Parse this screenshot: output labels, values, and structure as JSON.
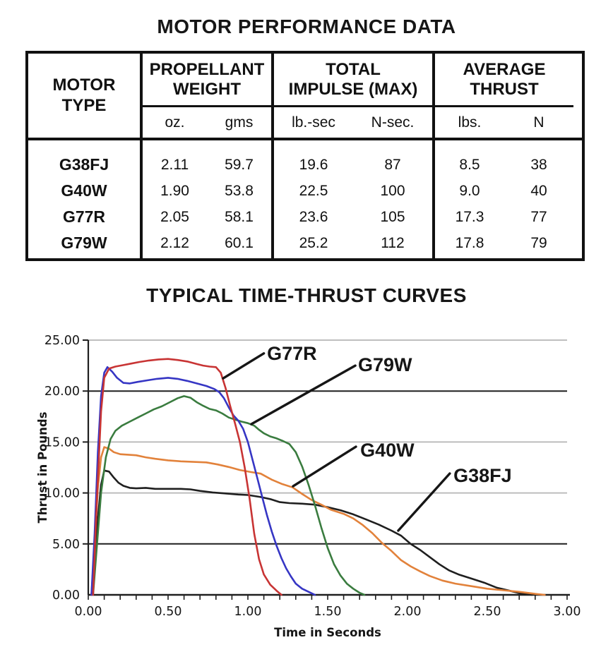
{
  "table": {
    "title": "MOTOR PERFORMANCE DATA",
    "header": {
      "motor": [
        "MOTOR",
        "TYPE"
      ],
      "groups": [
        {
          "label": [
            "PROPELLANT",
            "WEIGHT"
          ],
          "units": [
            "oz.",
            "gms"
          ]
        },
        {
          "label": [
            "TOTAL",
            "IMPULSE (MAX)"
          ],
          "units": [
            "lb.-sec",
            "N-sec."
          ]
        },
        {
          "label": [
            "AVERAGE",
            "THRUST"
          ],
          "units": [
            "lbs.",
            "N"
          ]
        }
      ]
    },
    "rows": [
      {
        "motor": "G38FJ",
        "values": [
          "2.11",
          "59.7",
          "19.6",
          "87",
          "8.5",
          "38"
        ]
      },
      {
        "motor": "G40W",
        "values": [
          "1.90",
          "53.8",
          "22.5",
          "100",
          "9.0",
          "40"
        ]
      },
      {
        "motor": "G77R",
        "values": [
          "2.05",
          "58.1",
          "23.6",
          "105",
          "17.3",
          "77"
        ]
      },
      {
        "motor": "G79W",
        "values": [
          "2.12",
          "60.1",
          "25.2",
          "112",
          "17.8",
          "79"
        ]
      }
    ]
  },
  "chart_data": {
    "type": "line",
    "title": "TYPICAL TIME-THRUST CURVES",
    "xlabel": "Time in Seconds",
    "ylabel": "Thrust in Pounds",
    "xlim": [
      0,
      3
    ],
    "ylim": [
      0,
      25
    ],
    "x_major_ticks": [
      0,
      0.5,
      1,
      1.5,
      2,
      2.5,
      3
    ],
    "x_tick_labels": [
      "0.00",
      "0.50",
      "1.00",
      "1.50",
      "2.00",
      "2.50",
      "3.00"
    ],
    "x_minor_step": 0.1,
    "y_ticks": [
      5,
      10,
      15,
      20,
      25
    ],
    "y_tick_labels": [
      "5.00",
      "10.00",
      "15.00",
      "20.00",
      "25.00"
    ],
    "origin_label": "0.00",
    "grid": {
      "dark_values": [
        5,
        20
      ],
      "light_color": "#b5b5b5",
      "dark_color": "#1f1f1f"
    },
    "axis_color": "#1f1f1f",
    "legend": "none",
    "series": [
      {
        "key": "g38fj",
        "label": "G38FJ",
        "color": "#1f1f1f",
        "points": [
          [
            0.02,
            0
          ],
          [
            0.04,
            3.5
          ],
          [
            0.06,
            7.5
          ],
          [
            0.08,
            10.8
          ],
          [
            0.1,
            12.2
          ],
          [
            0.13,
            12.1
          ],
          [
            0.16,
            11.5
          ],
          [
            0.19,
            11.0
          ],
          [
            0.22,
            10.7
          ],
          [
            0.26,
            10.5
          ],
          [
            0.3,
            10.45
          ],
          [
            0.36,
            10.5
          ],
          [
            0.42,
            10.4
          ],
          [
            0.5,
            10.4
          ],
          [
            0.58,
            10.4
          ],
          [
            0.64,
            10.35
          ],
          [
            0.7,
            10.2
          ],
          [
            0.78,
            10.05
          ],
          [
            0.86,
            9.95
          ],
          [
            0.94,
            9.85
          ],
          [
            1.0,
            9.8
          ],
          [
            1.08,
            9.6
          ],
          [
            1.14,
            9.4
          ],
          [
            1.2,
            9.1
          ],
          [
            1.26,
            9.0
          ],
          [
            1.34,
            8.95
          ],
          [
            1.42,
            8.85
          ],
          [
            1.5,
            8.6
          ],
          [
            1.58,
            8.3
          ],
          [
            1.66,
            7.9
          ],
          [
            1.74,
            7.4
          ],
          [
            1.82,
            6.9
          ],
          [
            1.9,
            6.3
          ],
          [
            1.96,
            5.8
          ],
          [
            2.02,
            5.0
          ],
          [
            2.08,
            4.4
          ],
          [
            2.14,
            3.7
          ],
          [
            2.2,
            3.0
          ],
          [
            2.26,
            2.4
          ],
          [
            2.32,
            2.0
          ],
          [
            2.4,
            1.6
          ],
          [
            2.48,
            1.2
          ],
          [
            2.56,
            0.7
          ],
          [
            2.64,
            0.4
          ],
          [
            2.72,
            0.1
          ],
          [
            2.78,
            0
          ]
        ]
      },
      {
        "key": "g40w",
        "label": "G40W",
        "color": "#e2823b",
        "points": [
          [
            0.02,
            0
          ],
          [
            0.04,
            5
          ],
          [
            0.06,
            10.5
          ],
          [
            0.08,
            13.5
          ],
          [
            0.1,
            14.5
          ],
          [
            0.13,
            14.35
          ],
          [
            0.16,
            14.0
          ],
          [
            0.2,
            13.8
          ],
          [
            0.25,
            13.75
          ],
          [
            0.3,
            13.7
          ],
          [
            0.36,
            13.5
          ],
          [
            0.42,
            13.35
          ],
          [
            0.5,
            13.2
          ],
          [
            0.58,
            13.1
          ],
          [
            0.66,
            13.05
          ],
          [
            0.74,
            13.0
          ],
          [
            0.81,
            12.8
          ],
          [
            0.88,
            12.55
          ],
          [
            0.95,
            12.25
          ],
          [
            1.02,
            12.05
          ],
          [
            1.08,
            11.9
          ],
          [
            1.15,
            11.3
          ],
          [
            1.21,
            10.9
          ],
          [
            1.28,
            10.55
          ],
          [
            1.34,
            9.9
          ],
          [
            1.4,
            9.3
          ],
          [
            1.46,
            8.85
          ],
          [
            1.52,
            8.35
          ],
          [
            1.6,
            7.95
          ],
          [
            1.66,
            7.5
          ],
          [
            1.72,
            6.85
          ],
          [
            1.78,
            6.05
          ],
          [
            1.84,
            5.1
          ],
          [
            1.9,
            4.3
          ],
          [
            1.96,
            3.4
          ],
          [
            2.02,
            2.8
          ],
          [
            2.08,
            2.3
          ],
          [
            2.14,
            1.85
          ],
          [
            2.22,
            1.4
          ],
          [
            2.3,
            1.1
          ],
          [
            2.4,
            0.85
          ],
          [
            2.5,
            0.6
          ],
          [
            2.6,
            0.45
          ],
          [
            2.7,
            0.3
          ],
          [
            2.8,
            0.1
          ],
          [
            2.86,
            0
          ]
        ]
      },
      {
        "key": "g79w",
        "label": "G79W",
        "color": "#3a7c3f",
        "points": [
          [
            0.03,
            0
          ],
          [
            0.05,
            4
          ],
          [
            0.08,
            10
          ],
          [
            0.11,
            13.5
          ],
          [
            0.14,
            15.3
          ],
          [
            0.17,
            16.1
          ],
          [
            0.21,
            16.6
          ],
          [
            0.26,
            17.0
          ],
          [
            0.31,
            17.4
          ],
          [
            0.36,
            17.8
          ],
          [
            0.41,
            18.2
          ],
          [
            0.46,
            18.5
          ],
          [
            0.51,
            18.9
          ],
          [
            0.56,
            19.3
          ],
          [
            0.6,
            19.5
          ],
          [
            0.64,
            19.35
          ],
          [
            0.68,
            18.9
          ],
          [
            0.72,
            18.55
          ],
          [
            0.76,
            18.25
          ],
          [
            0.8,
            18.1
          ],
          [
            0.84,
            17.8
          ],
          [
            0.88,
            17.4
          ],
          [
            0.92,
            17.2
          ],
          [
            0.96,
            17.0
          ],
          [
            1.0,
            16.85
          ],
          [
            1.04,
            16.6
          ],
          [
            1.07,
            16.2
          ],
          [
            1.1,
            15.85
          ],
          [
            1.14,
            15.55
          ],
          [
            1.18,
            15.35
          ],
          [
            1.22,
            15.1
          ],
          [
            1.26,
            14.8
          ],
          [
            1.3,
            14.0
          ],
          [
            1.34,
            12.6
          ],
          [
            1.38,
            10.8
          ],
          [
            1.42,
            8.8
          ],
          [
            1.46,
            6.6
          ],
          [
            1.5,
            4.6
          ],
          [
            1.54,
            3.0
          ],
          [
            1.58,
            1.9
          ],
          [
            1.62,
            1.1
          ],
          [
            1.66,
            0.6
          ],
          [
            1.7,
            0.2
          ],
          [
            1.73,
            0
          ]
        ]
      },
      {
        "key": "blue",
        "label": "",
        "color": "#3636c4",
        "points": [
          [
            0.02,
            0
          ],
          [
            0.04,
            6
          ],
          [
            0.06,
            14
          ],
          [
            0.08,
            19.5
          ],
          [
            0.1,
            21.8
          ],
          [
            0.12,
            22.35
          ],
          [
            0.15,
            21.9
          ],
          [
            0.18,
            21.3
          ],
          [
            0.22,
            20.8
          ],
          [
            0.26,
            20.75
          ],
          [
            0.31,
            20.9
          ],
          [
            0.37,
            21.05
          ],
          [
            0.43,
            21.2
          ],
          [
            0.5,
            21.3
          ],
          [
            0.56,
            21.2
          ],
          [
            0.62,
            21.0
          ],
          [
            0.68,
            20.75
          ],
          [
            0.74,
            20.5
          ],
          [
            0.79,
            20.2
          ],
          [
            0.82,
            19.9
          ],
          [
            0.85,
            19.3
          ],
          [
            0.88,
            18.4
          ],
          [
            0.91,
            17.6
          ],
          [
            0.94,
            17.1
          ],
          [
            0.97,
            16.3
          ],
          [
            1.0,
            15.0
          ],
          [
            1.03,
            13.2
          ],
          [
            1.06,
            11.4
          ],
          [
            1.09,
            9.6
          ],
          [
            1.12,
            7.8
          ],
          [
            1.15,
            6.2
          ],
          [
            1.18,
            4.8
          ],
          [
            1.21,
            3.6
          ],
          [
            1.24,
            2.6
          ],
          [
            1.27,
            1.8
          ],
          [
            1.3,
            1.1
          ],
          [
            1.34,
            0.6
          ],
          [
            1.38,
            0.3
          ],
          [
            1.42,
            0
          ]
        ]
      },
      {
        "key": "g77r",
        "label": "G77R",
        "color": "#c83434",
        "points": [
          [
            0.03,
            0
          ],
          [
            0.05,
            8
          ],
          [
            0.08,
            18
          ],
          [
            0.1,
            21.3
          ],
          [
            0.13,
            22.2
          ],
          [
            0.17,
            22.4
          ],
          [
            0.22,
            22.55
          ],
          [
            0.27,
            22.7
          ],
          [
            0.32,
            22.85
          ],
          [
            0.38,
            23.0
          ],
          [
            0.44,
            23.1
          ],
          [
            0.5,
            23.15
          ],
          [
            0.56,
            23.05
          ],
          [
            0.62,
            22.9
          ],
          [
            0.68,
            22.65
          ],
          [
            0.72,
            22.5
          ],
          [
            0.76,
            22.4
          ],
          [
            0.8,
            22.35
          ],
          [
            0.83,
            21.8
          ],
          [
            0.86,
            20.3
          ],
          [
            0.89,
            18.5
          ],
          [
            0.92,
            16.8
          ],
          [
            0.95,
            15.0
          ],
          [
            0.98,
            12.5
          ],
          [
            1.01,
            9.5
          ],
          [
            1.04,
            6.0
          ],
          [
            1.07,
            3.5
          ],
          [
            1.1,
            2.0
          ],
          [
            1.14,
            1.0
          ],
          [
            1.18,
            0.4
          ],
          [
            1.21,
            0
          ]
        ]
      }
    ],
    "annotations": [
      {
        "label": "G77R",
        "text_pos": [
          1.12,
          23.05
        ],
        "leader": [
          [
            1.1,
            23.7
          ],
          [
            0.845,
            21.25
          ]
        ]
      },
      {
        "label": "G79W",
        "text_pos": [
          1.69,
          21.95
        ],
        "leader": [
          [
            1.673,
            22.5
          ],
          [
            1.022,
            16.76
          ]
        ]
      },
      {
        "label": "G40W",
        "text_pos": [
          1.704,
          13.57
        ],
        "leader": [
          [
            1.677,
            14.54
          ],
          [
            1.283,
            10.66
          ]
        ]
      },
      {
        "label": "G38FJ",
        "text_pos": [
          2.288,
          11.08
        ],
        "leader": [
          [
            2.265,
            11.91
          ],
          [
            1.942,
            6.3
          ]
        ]
      }
    ]
  }
}
